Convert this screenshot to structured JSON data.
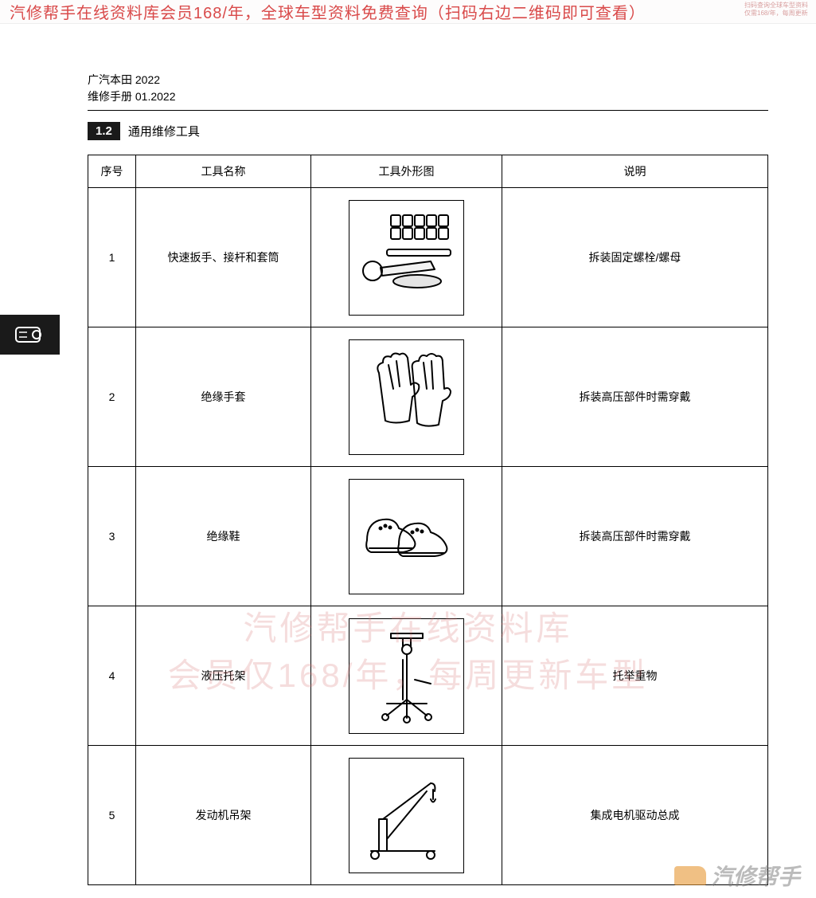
{
  "banner": {
    "text": "汽修帮手在线资料库会员168/年，全球车型资料免费查询（扫码右边二维码即可查看）",
    "small_line1": "扫码查询全球车型资料",
    "small_line2": "仅需168/年，每周更新",
    "text_color": "#d94a4a"
  },
  "header": {
    "brand_line": "广汽本田 2022",
    "manual_line": "维修手册 01.2022"
  },
  "section": {
    "number": "1.2",
    "title": "通用维修工具",
    "badge_bg": "#1a1a1a",
    "badge_fg": "#ffffff"
  },
  "table": {
    "columns": [
      "序号",
      "工具名称",
      "工具外形图",
      "说明"
    ],
    "rows": [
      {
        "seq": "1",
        "name": "快速扳手、接杆和套筒",
        "desc": "拆装固定螺栓/螺母",
        "icon": "ratchet"
      },
      {
        "seq": "2",
        "name": "绝缘手套",
        "desc": "拆装高压部件时需穿戴",
        "icon": "gloves"
      },
      {
        "seq": "3",
        "name": "绝缘鞋",
        "desc": "拆装高压部件时需穿戴",
        "icon": "shoes"
      },
      {
        "seq": "4",
        "name": "液压托架",
        "desc": "托举重物",
        "icon": "jack"
      },
      {
        "seq": "5",
        "name": "发动机吊架",
        "desc": "集成电机驱动总成",
        "icon": "crane"
      }
    ],
    "border_color": "#000000",
    "cell_fontsize": 14
  },
  "watermark": {
    "line1": "汽修帮手在线资料库",
    "line2": "会员仅168/年，每周更新车型",
    "color": "rgba(215,120,120,0.25)"
  },
  "bottom_logo": {
    "text": "汽修帮手"
  }
}
